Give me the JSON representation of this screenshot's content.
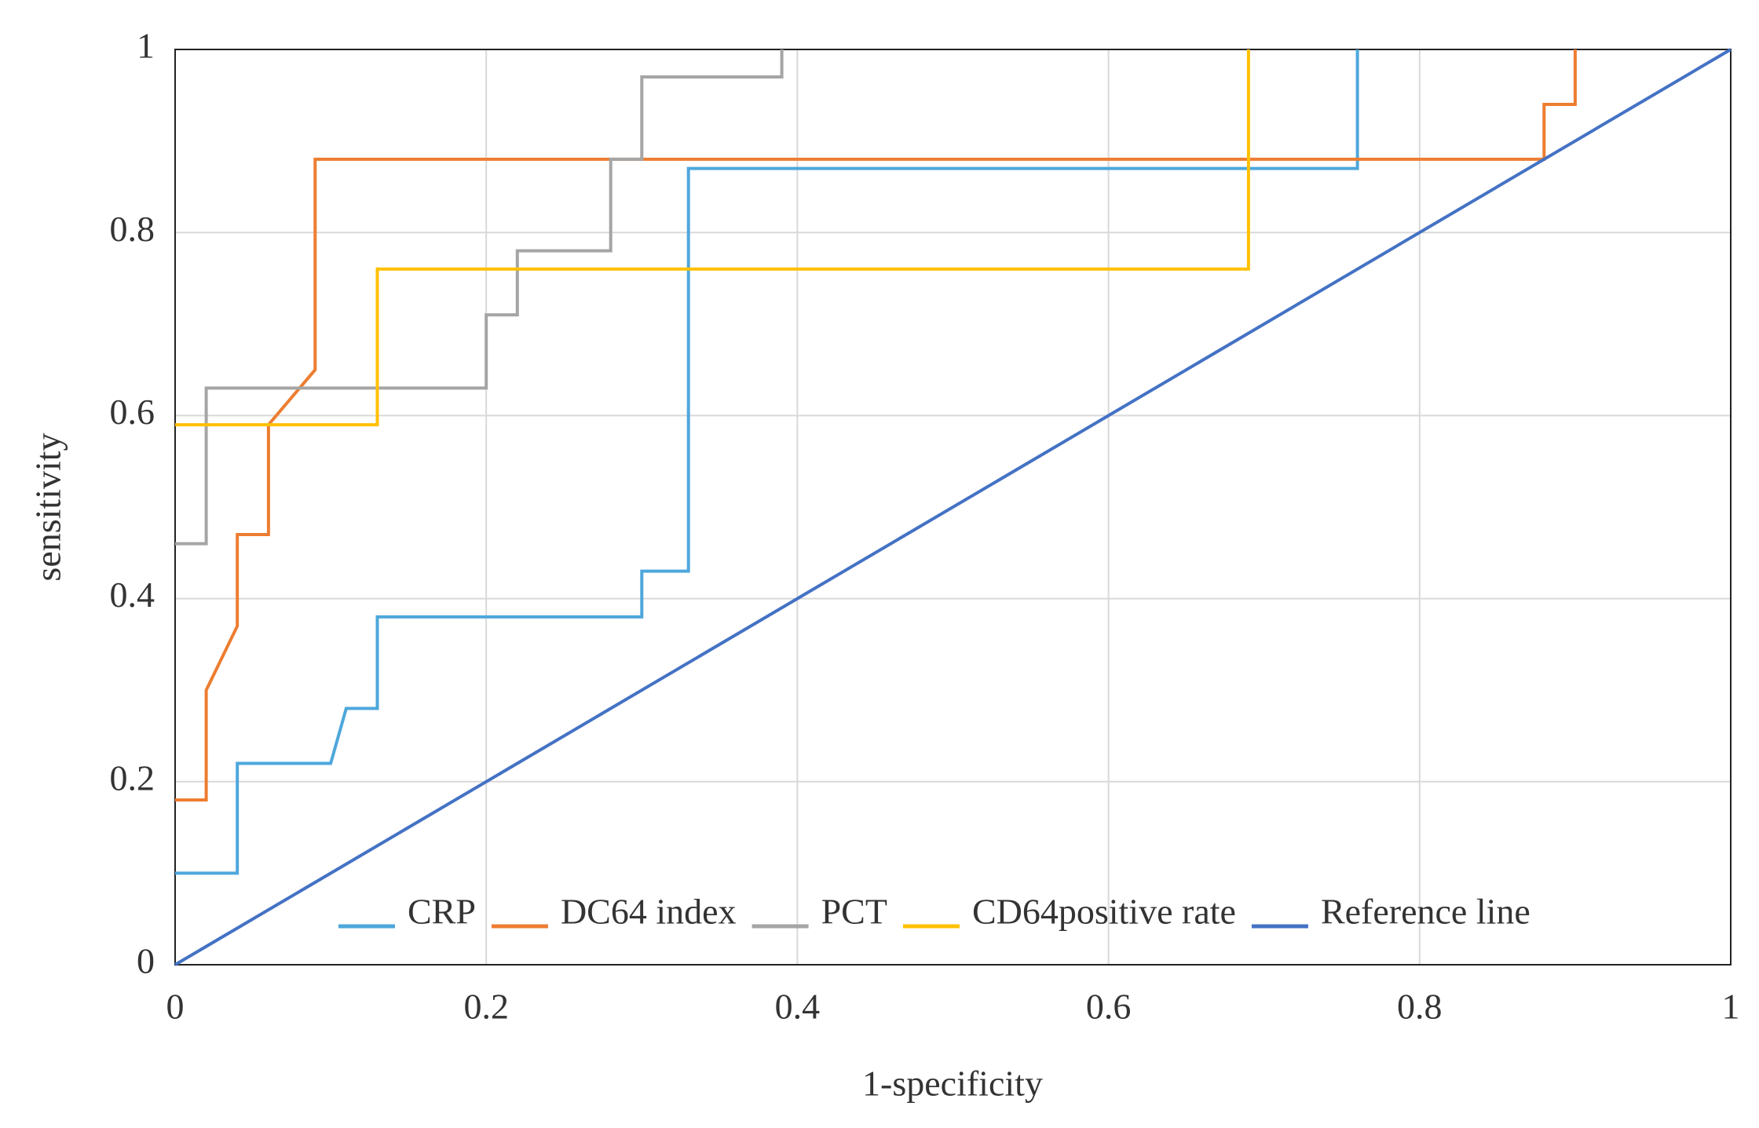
{
  "chart_data": {
    "type": "line",
    "x_label": "1-specificity",
    "y_label": "sensitivity",
    "xlim": [
      0,
      1
    ],
    "ylim": [
      0,
      1
    ],
    "xticks": [
      0,
      0.2,
      0.4,
      0.6,
      0.8,
      1
    ],
    "yticks": [
      0,
      0.2,
      0.4,
      0.6,
      0.8,
      1
    ],
    "grid": true,
    "legend": "bottom",
    "series": [
      {
        "name": "CRP",
        "color": "#4ea7dc",
        "x": [
          0,
          0.04,
          0.04,
          0.1,
          0.11,
          0.13,
          0.13,
          0.3,
          0.3,
          0.33,
          0.33,
          0.76,
          0.76
        ],
        "y": [
          0.1,
          0.1,
          0.22,
          0.22,
          0.28,
          0.28,
          0.38,
          0.38,
          0.43,
          0.43,
          0.87,
          0.87,
          1
        ]
      },
      {
        "name": "DC64 index",
        "color": "#ed7d31",
        "x": [
          0,
          0.02,
          0.02,
          0.04,
          0.04,
          0.06,
          0.06,
          0.09,
          0.09,
          0.88,
          0.88,
          0.9,
          0.9
        ],
        "y": [
          0.18,
          0.18,
          0.3,
          0.37,
          0.47,
          0.47,
          0.59,
          0.65,
          0.88,
          0.88,
          0.94,
          0.94,
          1
        ]
      },
      {
        "name": "PCT",
        "color": "#a5a5a5",
        "x": [
          0,
          0.02,
          0.02,
          0.2,
          0.2,
          0.22,
          0.22,
          0.28,
          0.28,
          0.3,
          0.3,
          0.39,
          0.39
        ],
        "y": [
          0.46,
          0.46,
          0.63,
          0.63,
          0.71,
          0.71,
          0.78,
          0.78,
          0.88,
          0.88,
          0.97,
          0.97,
          1
        ]
      },
      {
        "name": "CD64positive rate",
        "color": "#ffc000",
        "x": [
          0,
          0.13,
          0.13,
          0.69,
          0.69
        ],
        "y": [
          0.59,
          0.59,
          0.76,
          0.76,
          1
        ]
      },
      {
        "name": "Reference line",
        "color": "#4472c4",
        "x": [
          0,
          1
        ],
        "y": [
          0,
          1
        ]
      }
    ]
  }
}
